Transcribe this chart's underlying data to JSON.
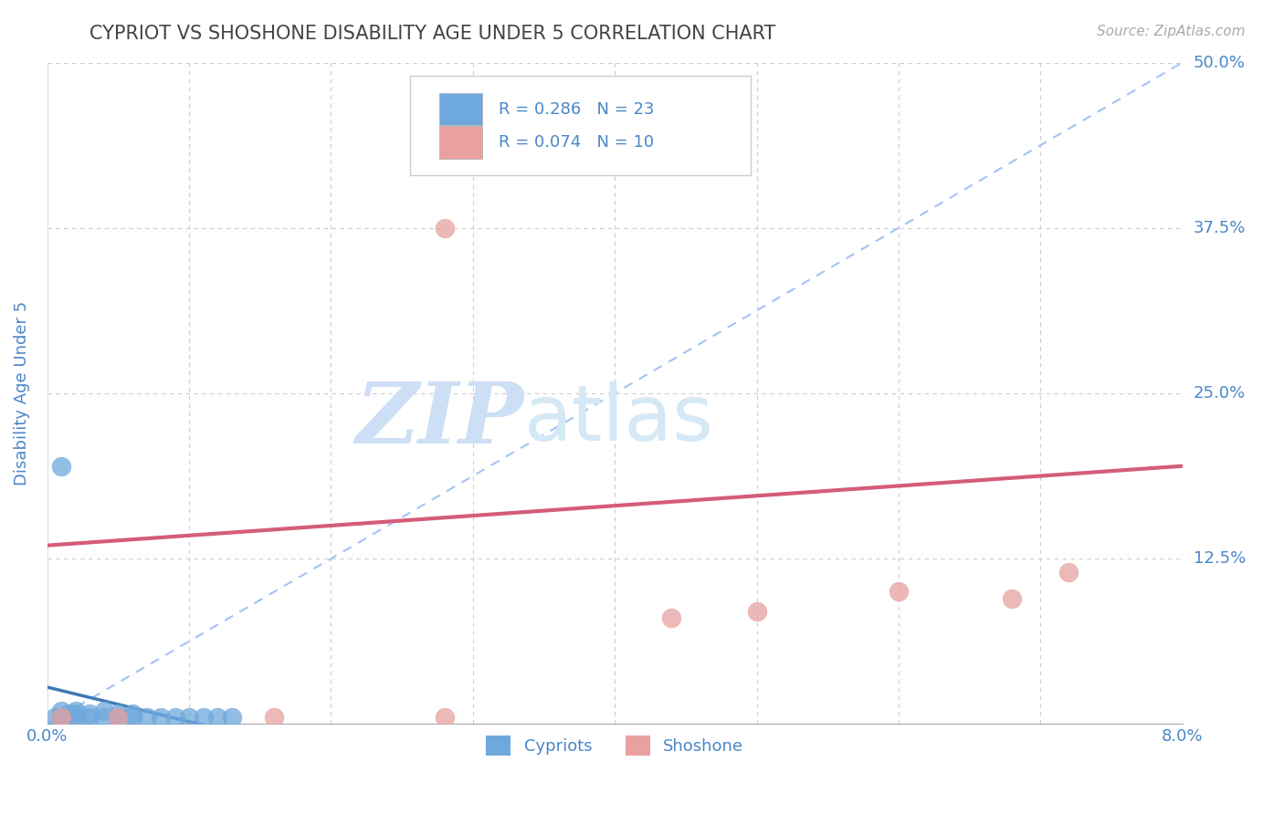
{
  "title": "CYPRIOT VS SHOSHONE DISABILITY AGE UNDER 5 CORRELATION CHART",
  "source": "Source: ZipAtlas.com",
  "ylabel": "Disability Age Under 5",
  "xlim": [
    0.0,
    0.08
  ],
  "ylim": [
    0.0,
    0.5
  ],
  "xticks": [
    0.0,
    0.01,
    0.02,
    0.03,
    0.04,
    0.05,
    0.06,
    0.07,
    0.08
  ],
  "yticks": [
    0.0,
    0.125,
    0.25,
    0.375,
    0.5
  ],
  "xtick_labels": [
    "0.0%",
    "",
    "",
    "",
    "",
    "",
    "",
    "",
    "8.0%"
  ],
  "ytick_labels": [
    "",
    "12.5%",
    "25.0%",
    "37.5%",
    "50.0%"
  ],
  "cypriot_x": [
    0.0005,
    0.001,
    0.001,
    0.0015,
    0.002,
    0.002,
    0.002,
    0.003,
    0.003,
    0.004,
    0.004,
    0.005,
    0.005,
    0.006,
    0.006,
    0.007,
    0.008,
    0.009,
    0.01,
    0.011,
    0.012,
    0.013,
    0.001
  ],
  "cypriot_y": [
    0.005,
    0.005,
    0.01,
    0.008,
    0.005,
    0.008,
    0.01,
    0.005,
    0.008,
    0.005,
    0.01,
    0.005,
    0.008,
    0.005,
    0.008,
    0.005,
    0.005,
    0.005,
    0.005,
    0.005,
    0.005,
    0.005,
    0.195
  ],
  "shoshone_x": [
    0.001,
    0.005,
    0.016,
    0.028,
    0.028,
    0.044,
    0.05,
    0.06,
    0.068,
    0.072
  ],
  "shoshone_y": [
    0.005,
    0.005,
    0.005,
    0.005,
    0.375,
    0.08,
    0.085,
    0.1,
    0.095,
    0.115
  ],
  "cypriot_color": "#6fa8dc",
  "shoshone_color": "#e8a0a0",
  "regression_cypriot_color": "#3d7ab5",
  "regression_shoshone_color": "#d45c7a",
  "diagonal_color": "#a4c2f4",
  "grid_color": "#cccccc",
  "axis_color": "#4a86c8",
  "title_color": "#444444",
  "watermark_zip_color": "#cddff5",
  "watermark_atlas_color": "#d5e8f5",
  "R_cypriot": 0.286,
  "N_cypriot": 23,
  "R_shoshone": 0.074,
  "N_shoshone": 10,
  "background_color": "#ffffff",
  "legend_box_color": "#cccccc",
  "source_color": "#aaaaaa"
}
